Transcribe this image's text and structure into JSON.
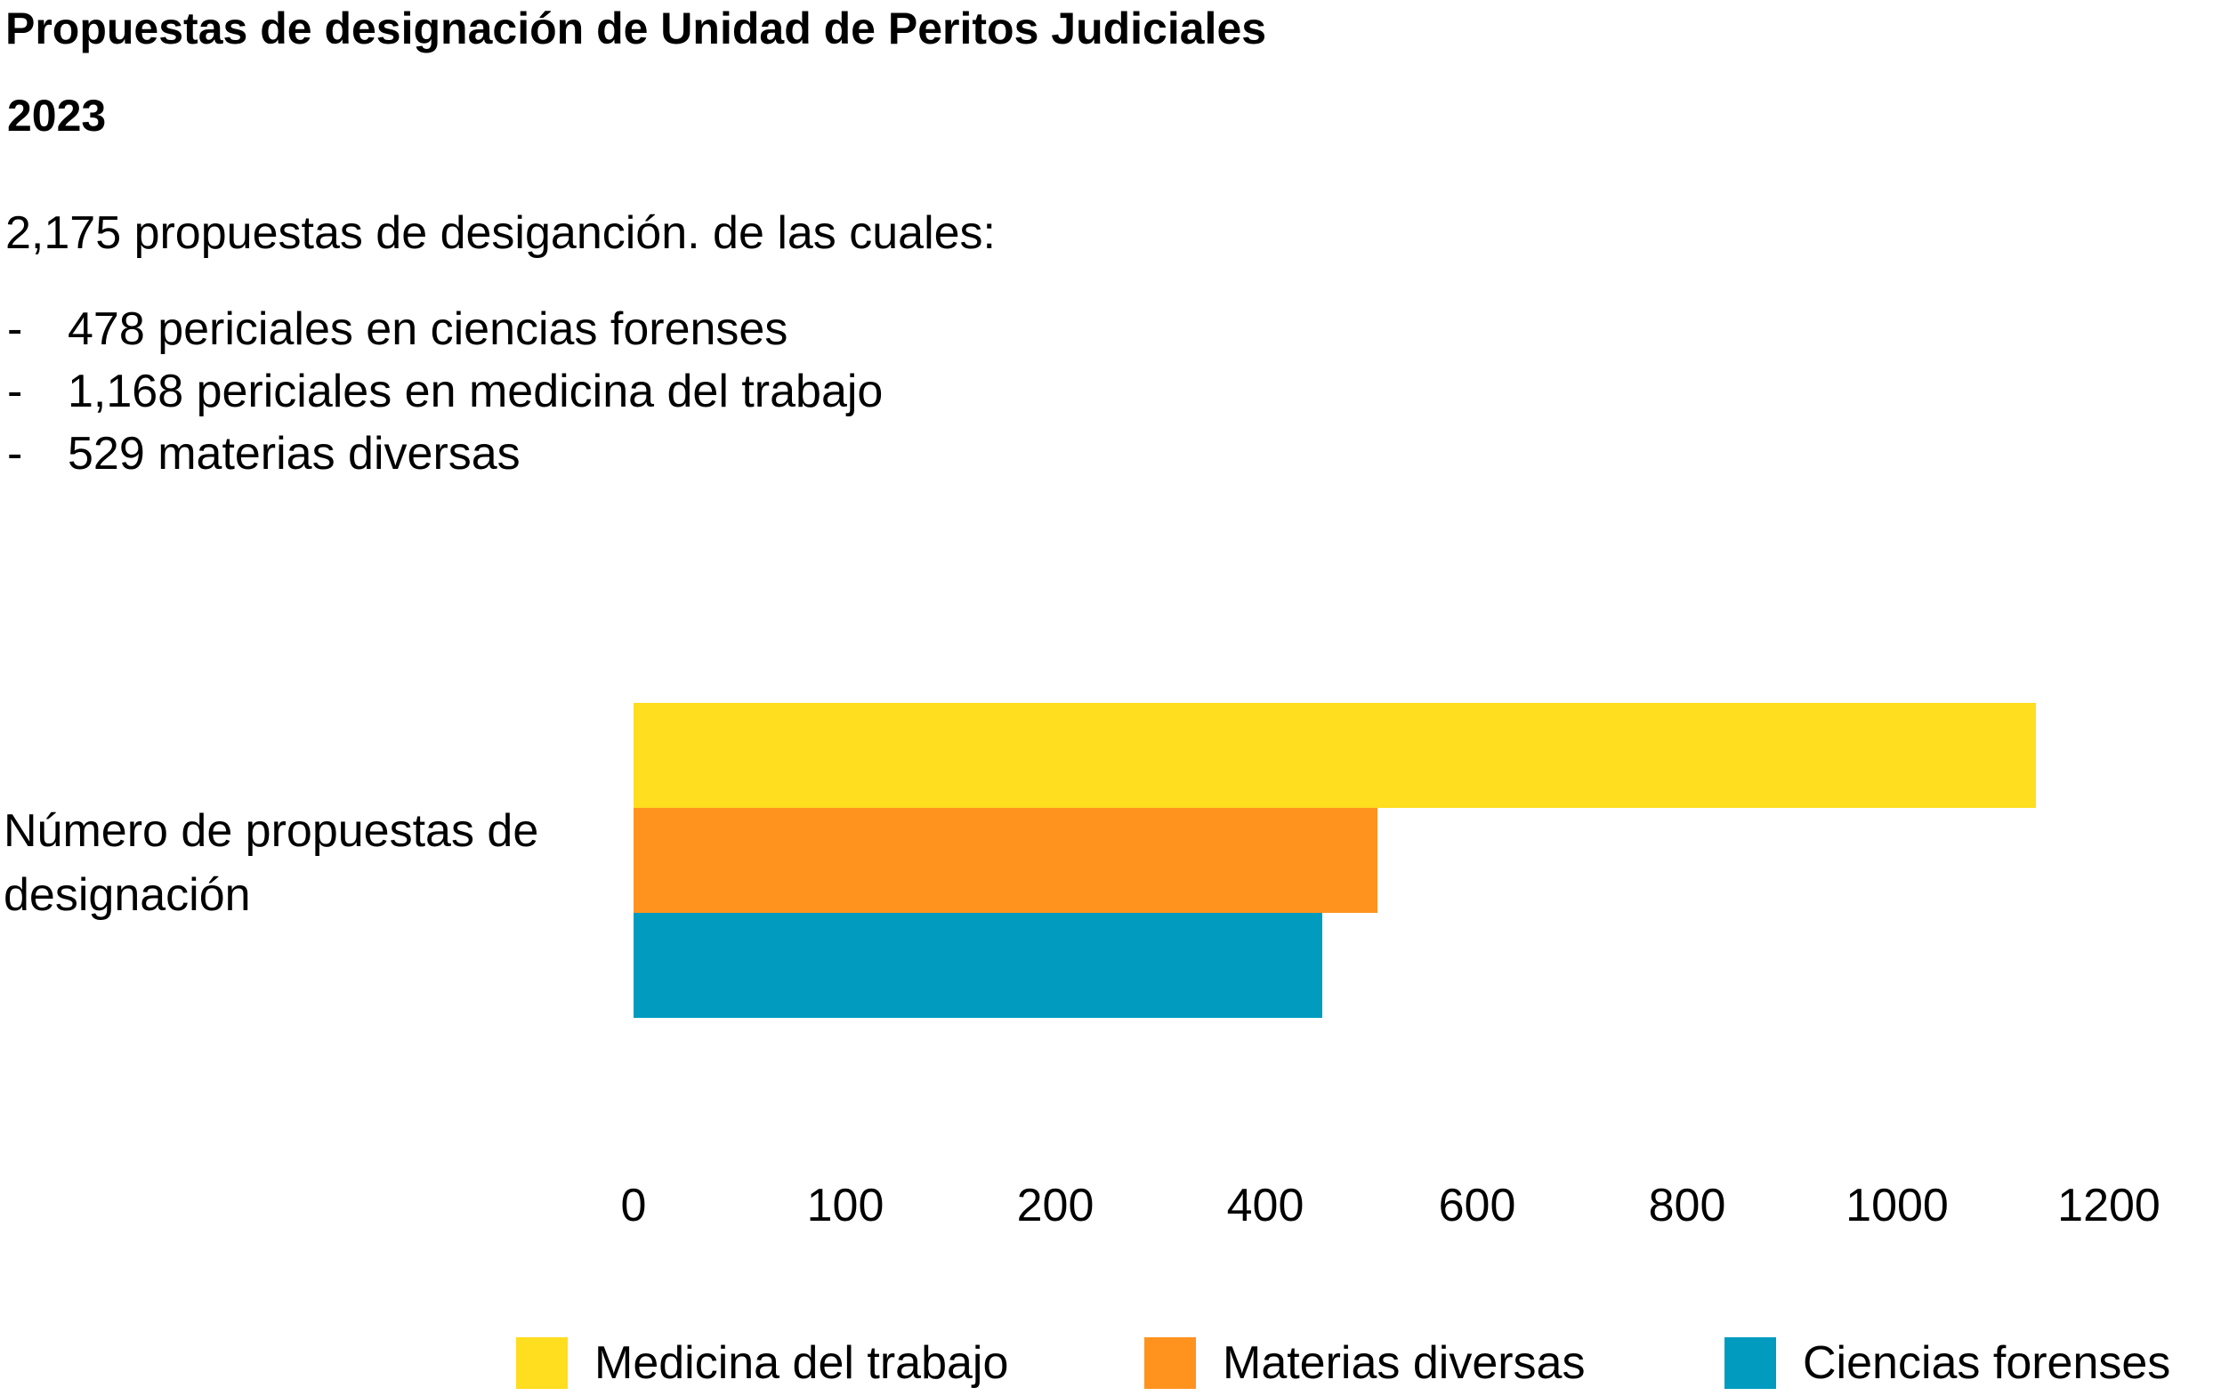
{
  "chart_data": {
    "type": "bar",
    "orientation": "horizontal",
    "title": "Propuestas de designación de Unidad de Peritos Judiciales",
    "subtitle": "2023",
    "summary": "2,175 propuestas de desiganción. de las cuales:",
    "bullets": [
      "478 periciales en ciencias forenses",
      "1,168 periciales en medicina del trabajo",
      "529 materias diversas"
    ],
    "category_label": "Número de propuestas de designación",
    "categories": [
      "Número de propuestas de designación"
    ],
    "series": [
      {
        "name": "Medicina del trabajo",
        "values": [
          1168
        ],
        "color": "#FFDD1F"
      },
      {
        "name": "Materias diversas",
        "values": [
          529
        ],
        "color": "#FF931E"
      },
      {
        "name": "Ciencias forenses",
        "values": [
          478
        ],
        "color": "#009BBF"
      }
    ],
    "x_ticks": [
      {
        "value": 0,
        "label": "0"
      },
      {
        "value": 100,
        "label": "100"
      },
      {
        "value": 200,
        "label": "200"
      },
      {
        "value": 400,
        "label": "400"
      },
      {
        "value": 600,
        "label": "600"
      },
      {
        "value": 800,
        "label": "800"
      },
      {
        "value": 1000,
        "label": "1000"
      },
      {
        "value": 1200,
        "label": "1200"
      }
    ],
    "xlabel": "",
    "ylabel": "",
    "grid": false,
    "legend_position": "bottom"
  }
}
